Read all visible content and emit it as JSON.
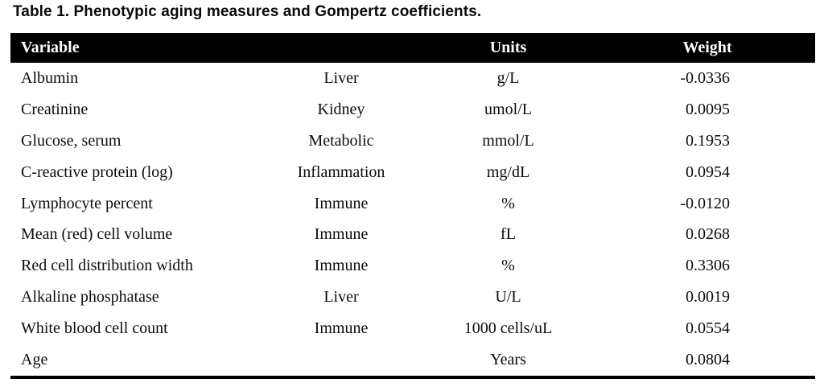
{
  "title": "Table 1. Phenotypic aging measures and Gompertz coefficients.",
  "colors": {
    "header_bg": "#000000",
    "header_text": "#ffffff",
    "body_text": "#0d0d0d",
    "rule": "#000000"
  },
  "table": {
    "header": {
      "variable": "Variable",
      "system": "",
      "units": "Units",
      "weight": "Weight"
    },
    "rows": [
      {
        "variable": "Albumin",
        "system": "Liver",
        "units": "g/L",
        "weight": "-0.0336"
      },
      {
        "variable": "Creatinine",
        "system": "Kidney",
        "units": "umol/L",
        "weight": "0.0095"
      },
      {
        "variable": "Glucose, serum",
        "system": "Metabolic",
        "units": "mmol/L",
        "weight": "0.1953"
      },
      {
        "variable": "C-reactive protein (log)",
        "system": "Inflammation",
        "units": "mg/dL",
        "weight": "0.0954"
      },
      {
        "variable": "Lymphocyte percent",
        "system": "Immune",
        "units": "%",
        "weight": "-0.0120"
      },
      {
        "variable": "Mean (red) cell volume",
        "system": "Immune",
        "units": "fL",
        "weight": "0.0268"
      },
      {
        "variable": "Red cell distribution width",
        "system": "Immune",
        "units": "%",
        "weight": "0.3306"
      },
      {
        "variable": "Alkaline phosphatase",
        "system": "Liver",
        "units": "U/L",
        "weight": "0.0019"
      },
      {
        "variable": "White blood cell count",
        "system": "Immune",
        "units": "1000 cells/uL",
        "weight": "0.0554"
      },
      {
        "variable": "Age",
        "system": "",
        "units": "Years",
        "weight": "0.0804"
      }
    ]
  }
}
